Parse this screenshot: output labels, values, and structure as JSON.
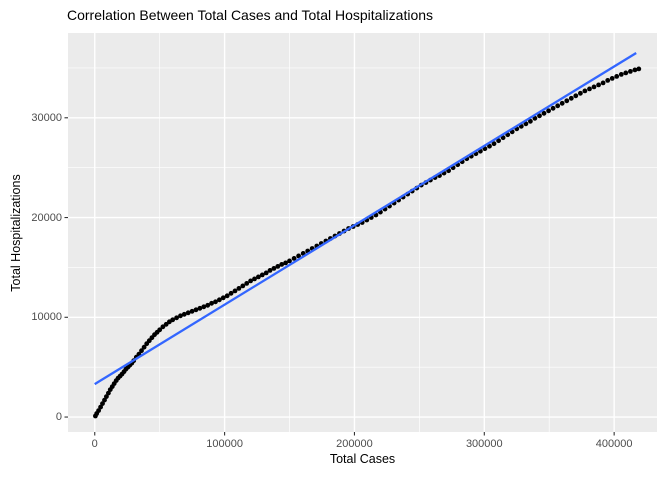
{
  "chart_data": {
    "type": "scatter",
    "title": "Correlation Between Total Cases and Total Hospitalizations",
    "xlabel": "Total Cases",
    "ylabel": "Total Hospitalizations",
    "xlim": [
      -20600,
      433000
    ],
    "ylim": [
      -1500,
      38500
    ],
    "x_ticks": [
      0,
      100000,
      200000,
      300000,
      400000
    ],
    "x_tick_labels": [
      "0",
      "100000",
      "200000",
      "300000",
      "400000"
    ],
    "y_ticks": [
      0,
      10000,
      20000,
      30000
    ],
    "y_tick_labels": [
      "0",
      "10000",
      "20000",
      "30000"
    ],
    "x_minor_ticks": [
      50000,
      150000,
      250000,
      350000
    ],
    "y_minor_ticks": [
      5000,
      15000,
      25000,
      35000
    ],
    "grid": true,
    "legend": "none",
    "colors": {
      "panel": "#EBEBEB",
      "grid": "#FFFFFF",
      "points": "#000000",
      "trend": "#3366FF",
      "tick_text": "#4D4D4D",
      "tick_mark": "#333333",
      "title_text": "#000000"
    },
    "trend_line": {
      "type": "linear",
      "points": [
        [
          0,
          3300
        ],
        [
          417000,
          36500
        ]
      ]
    },
    "points": [
      [
        500,
        100
      ],
      [
        1500,
        350
      ],
      [
        3000,
        650
      ],
      [
        4500,
        1000
      ],
      [
        6000,
        1350
      ],
      [
        7500,
        1700
      ],
      [
        9000,
        2050
      ],
      [
        10500,
        2400
      ],
      [
        12000,
        2750
      ],
      [
        13500,
        3050
      ],
      [
        15000,
        3350
      ],
      [
        16500,
        3650
      ],
      [
        18000,
        3900
      ],
      [
        19500,
        4100
      ],
      [
        21000,
        4300
      ],
      [
        22500,
        4550
      ],
      [
        24000,
        4800
      ],
      [
        25500,
        5000
      ],
      [
        27000,
        5200
      ],
      [
        28500,
        5400
      ],
      [
        30000,
        5650
      ],
      [
        32000,
        6000
      ],
      [
        34000,
        6300
      ],
      [
        36000,
        6650
      ],
      [
        38000,
        7000
      ],
      [
        40000,
        7350
      ],
      [
        42000,
        7650
      ],
      [
        44000,
        7950
      ],
      [
        46000,
        8250
      ],
      [
        48000,
        8500
      ],
      [
        50000,
        8750
      ],
      [
        52500,
        9050
      ],
      [
        55000,
        9300
      ],
      [
        57500,
        9550
      ],
      [
        60000,
        9750
      ],
      [
        63000,
        9950
      ],
      [
        66000,
        10150
      ],
      [
        69000,
        10300
      ],
      [
        72000,
        10450
      ],
      [
        75000,
        10600
      ],
      [
        78000,
        10750
      ],
      [
        81000,
        10900
      ],
      [
        84000,
        11050
      ],
      [
        87000,
        11200
      ],
      [
        90000,
        11400
      ],
      [
        93000,
        11550
      ],
      [
        96000,
        11750
      ],
      [
        99000,
        11950
      ],
      [
        102000,
        12150
      ],
      [
        105000,
        12400
      ],
      [
        108000,
        12650
      ],
      [
        111000,
        12900
      ],
      [
        114000,
        13150
      ],
      [
        117000,
        13400
      ],
      [
        120000,
        13650
      ],
      [
        123000,
        13850
      ],
      [
        126000,
        14050
      ],
      [
        129000,
        14250
      ],
      [
        132000,
        14450
      ],
      [
        135000,
        14700
      ],
      [
        138000,
        14900
      ],
      [
        141000,
        15100
      ],
      [
        144000,
        15300
      ],
      [
        147000,
        15450
      ],
      [
        150000,
        15650
      ],
      [
        153500,
        15900
      ],
      [
        157000,
        16150
      ],
      [
        160500,
        16400
      ],
      [
        164000,
        16650
      ],
      [
        167500,
        16900
      ],
      [
        171000,
        17150
      ],
      [
        174500,
        17400
      ],
      [
        178000,
        17650
      ],
      [
        181500,
        17900
      ],
      [
        185000,
        18150
      ],
      [
        188500,
        18400
      ],
      [
        192000,
        18650
      ],
      [
        195500,
        18900
      ],
      [
        199000,
        19100
      ],
      [
        202500,
        19300
      ],
      [
        206000,
        19500
      ],
      [
        209500,
        19750
      ],
      [
        213000,
        20000
      ],
      [
        216500,
        20250
      ],
      [
        220000,
        20550
      ],
      [
        223500,
        20850
      ],
      [
        227000,
        21150
      ],
      [
        230500,
        21450
      ],
      [
        234000,
        21750
      ],
      [
        237500,
        22050
      ],
      [
        241000,
        22350
      ],
      [
        244500,
        22650
      ],
      [
        248000,
        22950
      ],
      [
        251500,
        23250
      ],
      [
        255000,
        23500
      ],
      [
        258500,
        23750
      ],
      [
        262000,
        24000
      ],
      [
        265500,
        24200
      ],
      [
        269000,
        24450
      ],
      [
        272500,
        24700
      ],
      [
        276000,
        25000
      ],
      [
        279500,
        25300
      ],
      [
        283000,
        25600
      ],
      [
        286500,
        25900
      ],
      [
        290000,
        26150
      ],
      [
        293500,
        26400
      ],
      [
        297000,
        26650
      ],
      [
        300500,
        26900
      ],
      [
        304000,
        27150
      ],
      [
        307500,
        27400
      ],
      [
        311000,
        27700
      ],
      [
        314500,
        28000
      ],
      [
        318000,
        28300
      ],
      [
        321500,
        28600
      ],
      [
        325000,
        28900
      ],
      [
        328500,
        29150
      ],
      [
        332000,
        29400
      ],
      [
        335500,
        29650
      ],
      [
        339000,
        29950
      ],
      [
        342500,
        30200
      ],
      [
        346000,
        30450
      ],
      [
        349500,
        30700
      ],
      [
        353000,
        30950
      ],
      [
        356500,
        31200
      ],
      [
        360000,
        31450
      ],
      [
        363500,
        31700
      ],
      [
        367000,
        31950
      ],
      [
        370500,
        32200
      ],
      [
        374000,
        32450
      ],
      [
        377500,
        32700
      ],
      [
        381000,
        32900
      ],
      [
        384500,
        33100
      ],
      [
        388000,
        33300
      ],
      [
        391500,
        33500
      ],
      [
        395000,
        33750
      ],
      [
        398500,
        33950
      ],
      [
        402000,
        34150
      ],
      [
        405500,
        34350
      ],
      [
        409000,
        34500
      ],
      [
        412500,
        34650
      ],
      [
        416000,
        34800
      ],
      [
        419000,
        34900
      ]
    ]
  }
}
